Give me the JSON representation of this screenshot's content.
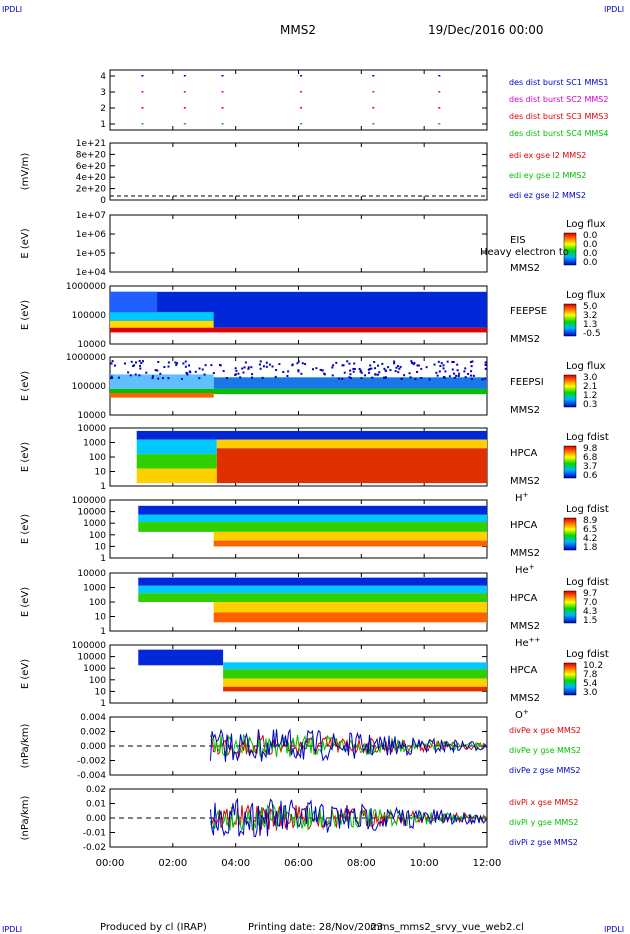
{
  "corner_label": "IPDLI",
  "header": {
    "spacecraft": "MMS2",
    "datetime": "19/Dec/2016 00:00"
  },
  "footer": {
    "produced_by": "Produced by cl (IRAP)",
    "printing_date": "Printing date: 28/Nov/2023",
    "filename": "mms_mms2_srvy_vue_web2.cl"
  },
  "x_ticks": [
    "00:00",
    "02:00",
    "04:00",
    "06:00",
    "08:00",
    "10:00",
    "12:00"
  ],
  "colors": {
    "red": "#e00000",
    "green": "#00c000",
    "blue": "#0000c0",
    "magenta": "#d000d0"
  },
  "chart_data": [
    {
      "type": "scatter",
      "panel": "burst",
      "ylim": [
        0.5,
        4.5
      ],
      "yticks": [
        "4",
        "3",
        "2",
        "1"
      ],
      "legend": [
        {
          "label": "des dist burst SC1 MMS1",
          "color": "#0000c0"
        },
        {
          "label": "des dist burst SC2 MMS2",
          "color": "#d000d0"
        },
        {
          "label": "des dist burst SC3 MMS3",
          "color": "#e00000"
        },
        {
          "label": "des dist burst SC4 MMS4",
          "color": "#00c000"
        }
      ],
      "x_hours": [
        1.0,
        2.35,
        3.55,
        6.05,
        8.35,
        10.45
      ]
    },
    {
      "type": "line",
      "panel": "edi",
      "ylabel": "(mV/m)",
      "yticks": [
        "1e+21",
        "8e+20",
        "6e+20",
        "4e+20",
        "2e+20",
        "0"
      ],
      "legend": [
        {
          "label": "edi ex gse l2 MMS2",
          "color": "#e00000"
        },
        {
          "label": "edi ey gse l2 MMS2",
          "color": "#00c000"
        },
        {
          "label": "edi ez gse l2 MMS2",
          "color": "#0000c0"
        }
      ]
    },
    {
      "type": "heatmap",
      "panel": "eis",
      "ylabel": "E (eV)",
      "yticks": [
        "1e+07",
        "1e+06",
        "1e+05",
        "1e+04"
      ],
      "instrument": [
        "EIS",
        "MMS2"
      ],
      "overlay_text": "Heavy electron to",
      "colorbar": {
        "title": "Log flux",
        "ticks": [
          "0.0",
          "0.0",
          "0.0",
          "0.0"
        ]
      }
    },
    {
      "type": "heatmap",
      "panel": "feepse",
      "ylabel": "E (eV)",
      "yticks": [
        "1000000",
        "100000",
        "10000"
      ],
      "instrument": [
        "FEEPSE",
        "MMS2"
      ],
      "colorbar": {
        "title": "Log flux",
        "ticks": [
          "5.0",
          "3.2",
          "1.3",
          "-0.5"
        ]
      }
    },
    {
      "type": "heatmap",
      "panel": "feepsi",
      "ylabel": "E (eV)",
      "yticks": [
        "1000000",
        "100000",
        "10000"
      ],
      "instrument": [
        "FEEPSI",
        "MMS2"
      ],
      "colorbar": {
        "title": "Log flux",
        "ticks": [
          "3.0",
          "2.1",
          "1.2",
          "0.3"
        ]
      }
    },
    {
      "type": "heatmap",
      "panel": "hpca_h",
      "ylabel": "E (eV)",
      "yticks": [
        "10000",
        "1000",
        "100",
        "10",
        "1"
      ],
      "instrument": [
        "HPCA",
        "MMS2"
      ],
      "species": "H",
      "species_sup": "+",
      "colorbar": {
        "title": "Log fdist",
        "ticks": [
          "9.8",
          "6.8",
          "3.7",
          "0.6"
        ]
      }
    },
    {
      "type": "heatmap",
      "panel": "hpca_he",
      "ylabel": "E (eV)",
      "yticks": [
        "100000",
        "10000",
        "1000",
        "100",
        "10",
        "1"
      ],
      "instrument": [
        "HPCA",
        "MMS2"
      ],
      "species": "He",
      "species_sup": "+",
      "colorbar": {
        "title": "Log fdist",
        "ticks": [
          "8.9",
          "6.5",
          "4.2",
          "1.8"
        ]
      }
    },
    {
      "type": "heatmap",
      "panel": "hpca_hepp",
      "ylabel": "E (eV)",
      "yticks": [
        "10000",
        "1000",
        "100",
        "10",
        "1"
      ],
      "instrument": [
        "HPCA",
        "MMS2"
      ],
      "species": "He",
      "species_sup": "++",
      "colorbar": {
        "title": "Log fdist",
        "ticks": [
          "9.7",
          "7.0",
          "4.3",
          "1.5"
        ]
      }
    },
    {
      "type": "heatmap",
      "panel": "hpca_o",
      "ylabel": "E (eV)",
      "yticks": [
        "100000",
        "10000",
        "1000",
        "100",
        "10",
        "1"
      ],
      "instrument": [
        "HPCA",
        "MMS2"
      ],
      "species": "O",
      "species_sup": "+",
      "colorbar": {
        "title": "Log fdist",
        "ticks": [
          "10.2",
          "7.8",
          "5.4",
          "3.0"
        ]
      }
    },
    {
      "type": "line",
      "panel": "divpe",
      "ylabel": "(nPa/km)",
      "ylim": [
        -0.005,
        0.005
      ],
      "yticks": [
        "0.004",
        "0.002",
        "0.000",
        "-0.002",
        "-0.004"
      ],
      "legend": [
        {
          "label": "divPe x gse MMS2",
          "color": "#e00000"
        },
        {
          "label": "divPe y gse MMS2",
          "color": "#00c000"
        },
        {
          "label": "divPe z gse MMS2",
          "color": "#0000c0"
        }
      ]
    },
    {
      "type": "line",
      "panel": "divpi",
      "ylabel": "(nPa/km)",
      "ylim": [
        -0.025,
        0.02
      ],
      "yticks": [
        "0.02",
        "0.01",
        "0.00",
        "-0.01",
        "-0.02"
      ],
      "legend": [
        {
          "label": "divPi x gse MMS2",
          "color": "#e00000"
        },
        {
          "label": "divPi y gse MMS2",
          "color": "#00c000"
        },
        {
          "label": "divPi z gse MMS2",
          "color": "#0000c0"
        }
      ]
    }
  ]
}
